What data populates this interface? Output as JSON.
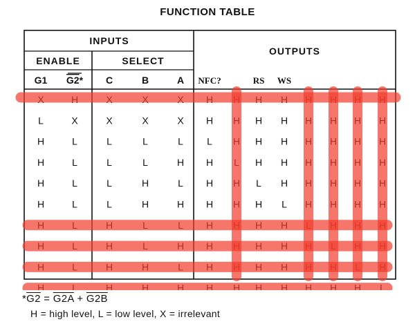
{
  "title": "FUNCTION TABLE",
  "headers": {
    "inputs": "INPUTS",
    "outputs": "OUTPUTS",
    "enable": "ENABLE",
    "select": "SELECT",
    "columns": [
      "G1",
      "G2*",
      "C",
      "B",
      "A",
      "NFC?",
      "",
      "RS",
      "WS",
      "",
      "",
      "",
      ""
    ]
  },
  "rows": [
    [
      "X",
      "H",
      "X",
      "X",
      "X",
      "H",
      "H",
      "H",
      "H",
      "H",
      "H",
      "H",
      "H"
    ],
    [
      "L",
      "X",
      "X",
      "X",
      "X",
      "H",
      "H",
      "H",
      "H",
      "H",
      "H",
      "H",
      "H"
    ],
    [
      "H",
      "L",
      "L",
      "L",
      "L",
      "L",
      "H",
      "H",
      "H",
      "H",
      "H",
      "H",
      "H"
    ],
    [
      "H",
      "L",
      "L",
      "L",
      "H",
      "H",
      "L",
      "H",
      "H",
      "H",
      "H",
      "H",
      "H"
    ],
    [
      "H",
      "L",
      "L",
      "H",
      "L",
      "H",
      "H",
      "L",
      "H",
      "H",
      "H",
      "H",
      "H"
    ],
    [
      "H",
      "L",
      "L",
      "H",
      "H",
      "H",
      "H",
      "H",
      "L",
      "H",
      "H",
      "H",
      "H"
    ],
    [
      "H",
      "L",
      "H",
      "L",
      "L",
      "H",
      "H",
      "H",
      "H",
      "L",
      "H",
      "H",
      "H"
    ],
    [
      "H",
      "L",
      "H",
      "L",
      "H",
      "H",
      "H",
      "H",
      "H",
      "H",
      "L",
      "H",
      "H"
    ],
    [
      "H",
      "L",
      "H",
      "H",
      "L",
      "H",
      "H",
      "H",
      "H",
      "H",
      "H",
      "L",
      "H"
    ],
    [
      "H",
      "L",
      "H",
      "H",
      "H",
      "H",
      "H",
      "H",
      "H",
      "H",
      "H",
      "H",
      "L"
    ]
  ],
  "footnote": {
    "star": "*",
    "lhs": "G2",
    "eq": " = ",
    "t1": "G2A",
    "plus": " + ",
    "t2": "G2B",
    "legend": "H = high level, L = low level, X = irrelevant"
  },
  "colors": {
    "ink": "#111111",
    "highlight": "#f23c2c"
  }
}
